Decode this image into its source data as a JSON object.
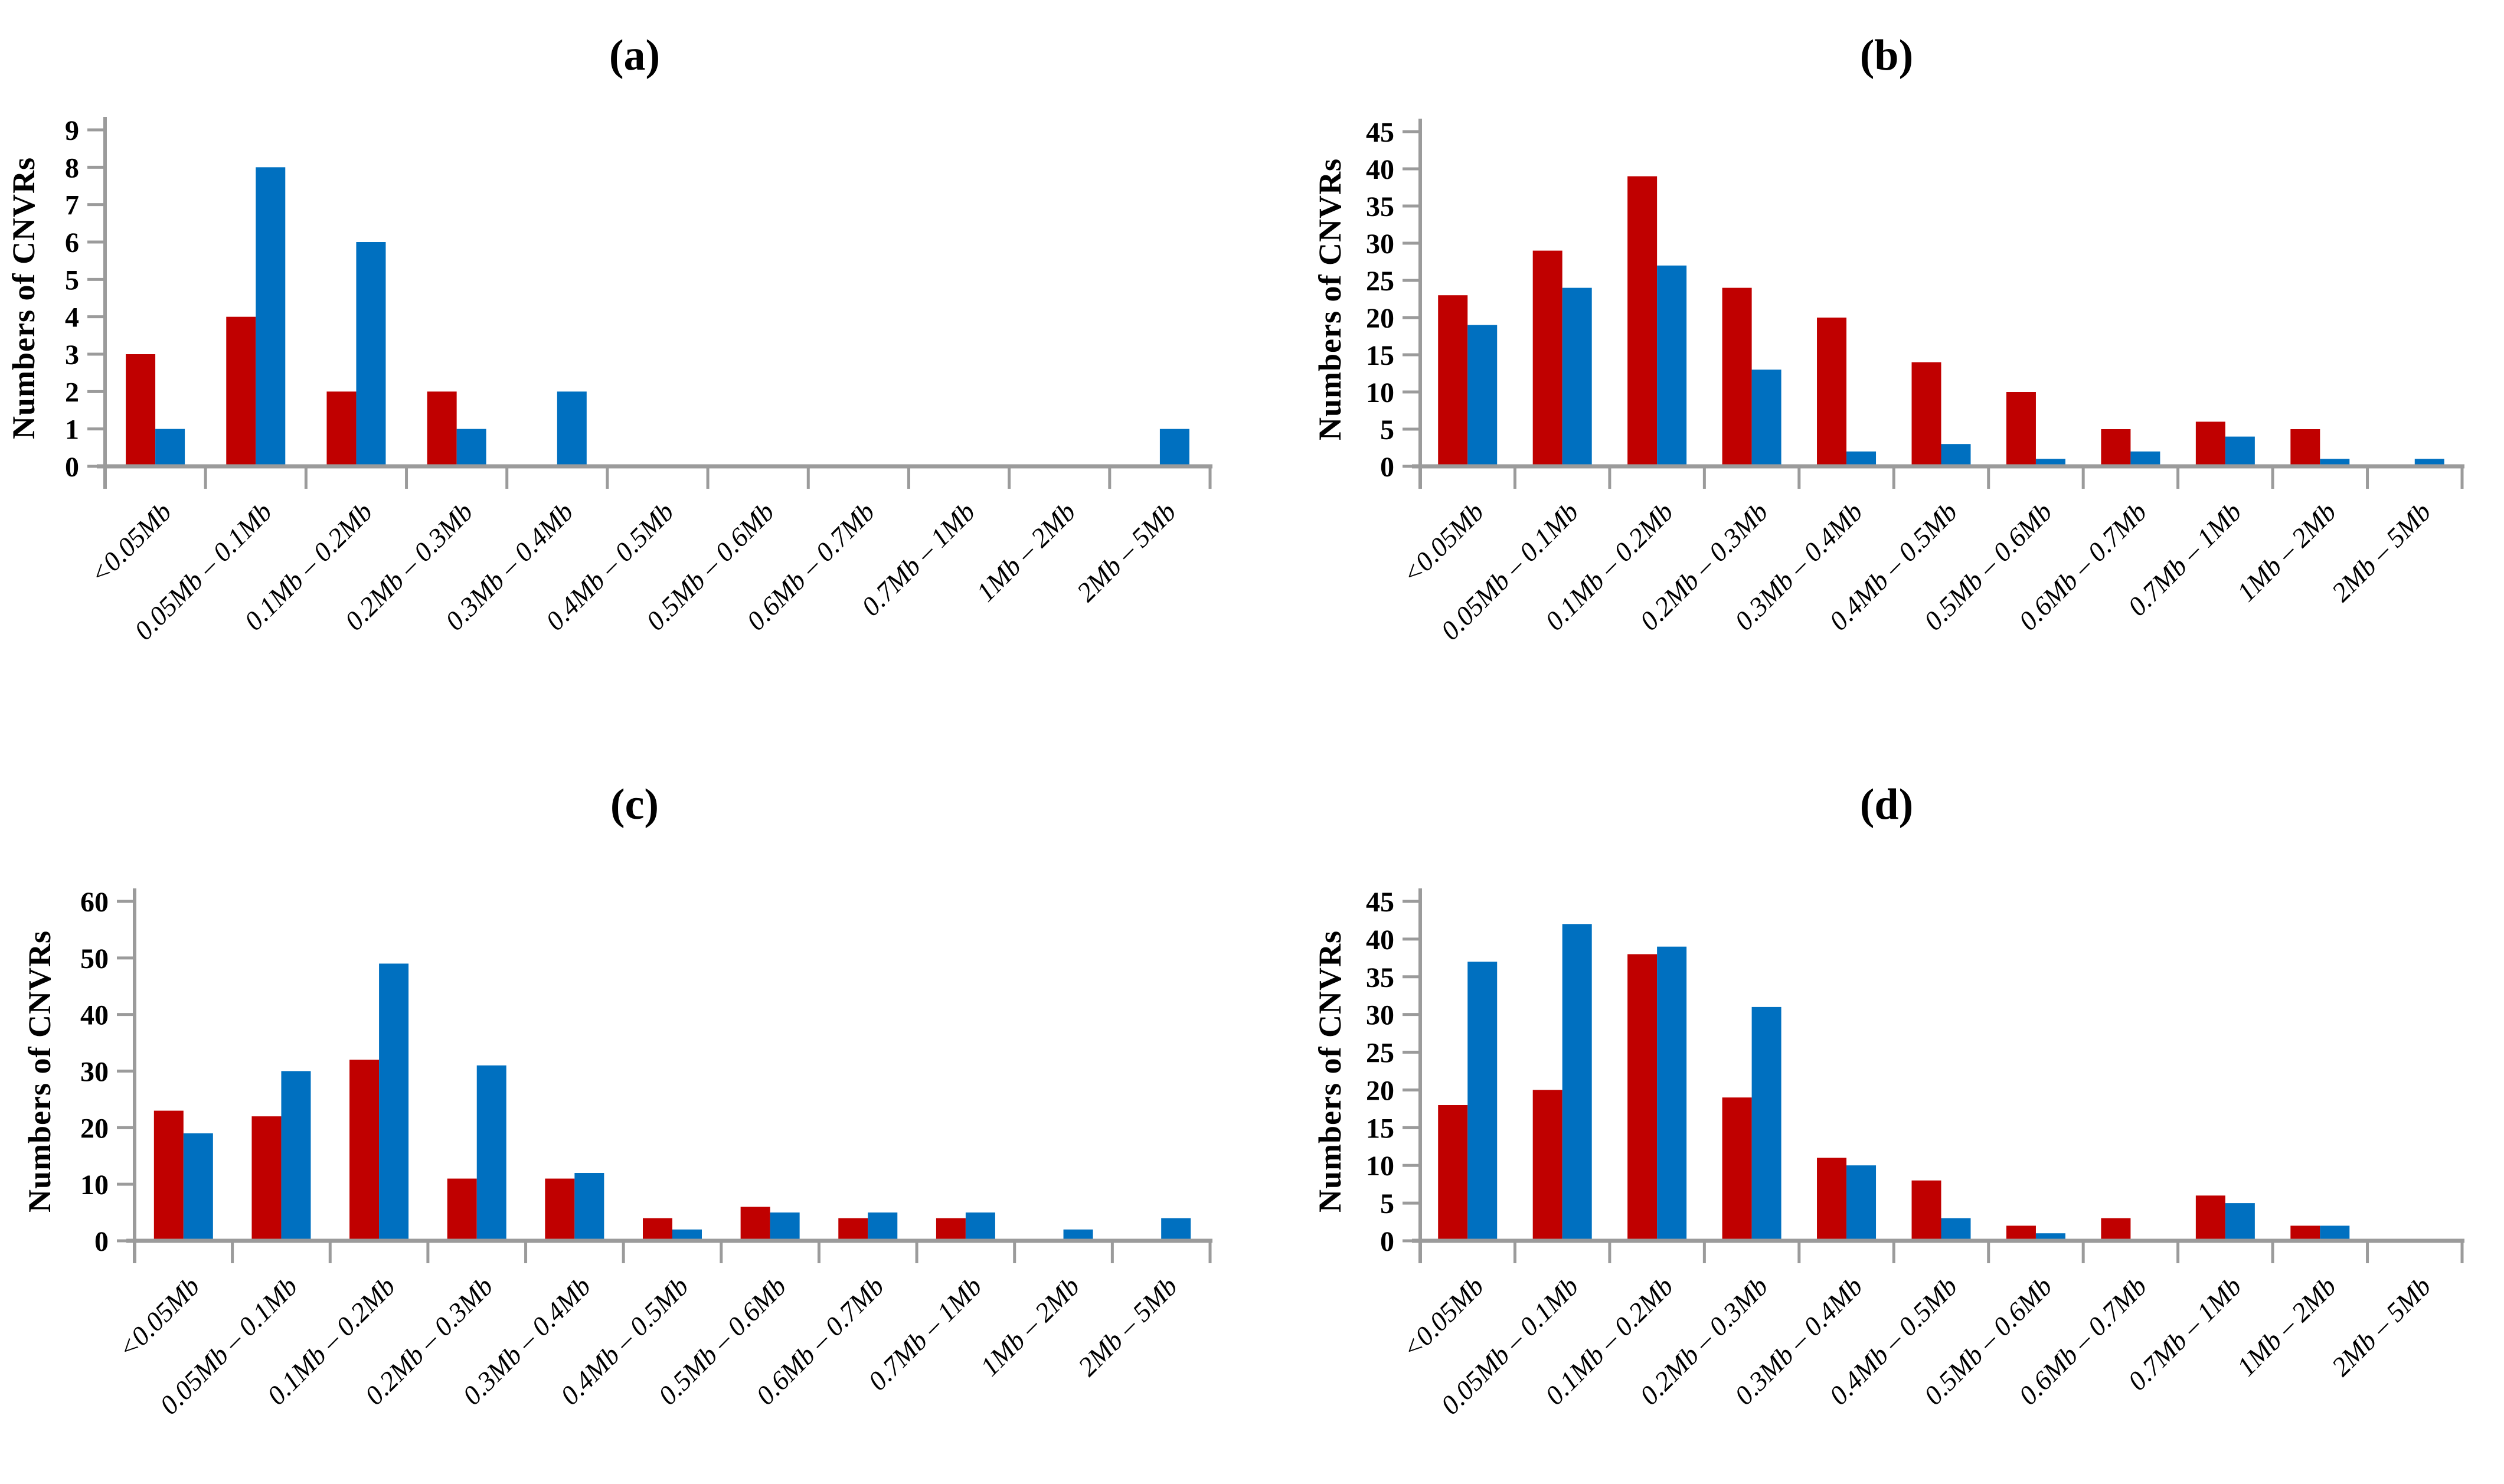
{
  "figure": {
    "ylabel": "Numbers of CNVRs",
    "colors": {
      "series_red": "#C00000",
      "series_blue": "#0070C0",
      "axis_gray": "#9B9B9B",
      "text_black": "#000000",
      "background": "#FFFFFF"
    }
  },
  "chart_data": [
    {
      "type": "bar",
      "panel": "a",
      "title": "(a)",
      "ylabel": "Numbers of CNVRs",
      "xlabel": "",
      "grid": false,
      "legend": "none",
      "ylim": [
        0,
        9
      ],
      "ytick_step": 1,
      "yticks": [
        0,
        1,
        2,
        3,
        4,
        5,
        6,
        7,
        8,
        9
      ],
      "categories": [
        "<0.05Mb",
        "0.05Mb – 0.1Mb",
        "0.1Mb – 0.2Mb",
        "0.2Mb – 0.3Mb",
        "0.3Mb – 0.4Mb",
        "0.4Mb – 0.5Mb",
        "0.5Mb – 0.6Mb",
        "0.6Mb – 0.7Mb",
        "0.7Mb – 1Mb",
        "1Mb – 2Mb",
        "2Mb – 5Mb"
      ],
      "series": [
        {
          "name": "red",
          "color": "#C00000",
          "values": [
            3,
            4,
            2,
            2,
            0,
            0,
            0,
            0,
            0,
            0,
            0
          ]
        },
        {
          "name": "blue",
          "color": "#0070C0",
          "values": [
            1,
            8,
            6,
            1,
            2,
            0,
            0,
            0,
            0,
            0,
            1
          ]
        }
      ]
    },
    {
      "type": "bar",
      "panel": "b",
      "title": "(b)",
      "ylabel": "Numbers of CNVRs",
      "xlabel": "",
      "grid": false,
      "legend": "none",
      "ylim": [
        0,
        45
      ],
      "ytick_step": 5,
      "yticks": [
        0,
        5,
        10,
        15,
        20,
        25,
        30,
        35,
        40,
        45
      ],
      "categories": [
        "<0.05Mb",
        "0.05Mb – 0.1Mb",
        "0.1Mb – 0.2Mb",
        "0.2Mb – 0.3Mb",
        "0.3Mb – 0.4Mb",
        "0.4Mb – 0.5Mb",
        "0.5Mb – 0.6Mb",
        "0.6Mb – 0.7Mb",
        "0.7Mb – 1Mb",
        "1Mb – 2Mb",
        "2Mb – 5Mb"
      ],
      "series": [
        {
          "name": "red",
          "color": "#C00000",
          "values": [
            23,
            29,
            39,
            24,
            20,
            14,
            10,
            5,
            6,
            5,
            0
          ]
        },
        {
          "name": "blue",
          "color": "#0070C0",
          "values": [
            19,
            24,
            27,
            13,
            2,
            3,
            1,
            2,
            4,
            1,
            1
          ]
        }
      ]
    },
    {
      "type": "bar",
      "panel": "c",
      "title": "(c)",
      "ylabel": "Numbers of CNVRs",
      "xlabel": "",
      "grid": false,
      "legend": "none",
      "ylim": [
        0,
        60
      ],
      "ytick_step": 10,
      "yticks": [
        0,
        10,
        20,
        30,
        40,
        50,
        60
      ],
      "categories": [
        "<0.05Mb",
        "0.05Mb – 0.1Mb",
        "0.1Mb – 0.2Mb",
        "0.2Mb – 0.3Mb",
        "0.3Mb – 0.4Mb",
        "0.4Mb – 0.5Mb",
        "0.5Mb – 0.6Mb",
        "0.6Mb – 0.7Mb",
        "0.7Mb – 1Mb",
        "1Mb – 2Mb",
        "2Mb – 5Mb"
      ],
      "series": [
        {
          "name": "red",
          "color": "#C00000",
          "values": [
            23,
            22,
            32,
            11,
            11,
            4,
            6,
            4,
            4,
            0,
            0
          ]
        },
        {
          "name": "blue",
          "color": "#0070C0",
          "values": [
            19,
            30,
            49,
            31,
            12,
            2,
            5,
            5,
            5,
            2,
            4
          ]
        }
      ]
    },
    {
      "type": "bar",
      "panel": "d",
      "title": "(d)",
      "ylabel": "Numbers of CNVRs",
      "xlabel": "",
      "grid": false,
      "legend": "none",
      "ylim": [
        0,
        45
      ],
      "ytick_step": 5,
      "yticks": [
        0,
        5,
        10,
        15,
        20,
        25,
        30,
        35,
        40,
        45
      ],
      "categories": [
        "<0.05Mb",
        "0.05Mb – 0.1Mb",
        "0.1Mb – 0.2Mb",
        "0.2Mb – 0.3Mb",
        "0.3Mb – 0.4Mb",
        "0.4Mb – 0.5Mb",
        "0.5Mb – 0.6Mb",
        "0.6Mb – 0.7Mb",
        "0.7Mb – 1Mb",
        "1Mb – 2Mb",
        "2Mb – 5Mb"
      ],
      "series": [
        {
          "name": "red",
          "color": "#C00000",
          "values": [
            18,
            20,
            38,
            19,
            11,
            8,
            2,
            3,
            6,
            2,
            0
          ]
        },
        {
          "name": "blue",
          "color": "#0070C0",
          "values": [
            37,
            42,
            39,
            31,
            10,
            3,
            1,
            0,
            5,
            2,
            0
          ]
        }
      ]
    }
  ]
}
